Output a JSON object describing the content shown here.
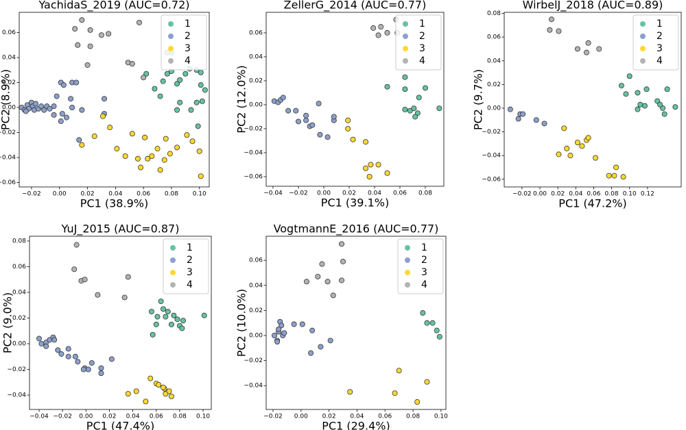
{
  "chart_data": [
    {
      "type": "scatter",
      "title": "YachidaS_2019 (AUC=0.72)",
      "xlabel": "PC1 (38.9%)",
      "ylabel": "PC2 (8.9%)",
      "xlim": [
        -0.0288,
        0.107
      ],
      "ylim": [
        -0.0636,
        0.0762
      ],
      "xticks": [
        {
          "value": -0.02,
          "label": "−0.02"
        },
        {
          "value": 0,
          "label": "0.00"
        },
        0.02,
        0.04,
        0.06,
        0.08,
        {
          "value": 0.1,
          "label": "0.10"
        }
      ],
      "yticks": [
        {
          "value": -0.06,
          "label": "−0.06"
        },
        {
          "value": -0.04,
          "label": "−0.04"
        },
        {
          "value": -0.02,
          "label": "−0.02"
        },
        {
          "value": 0,
          "label": "0.00"
        },
        0.02,
        0.04,
        0.06
      ],
      "legend": "upper right",
      "series": [
        {
          "name": "1",
          "color": "#66c2a5",
          "x": [
            0.062,
            0.068,
            0.072,
            0.077,
            0.08,
            0.08,
            0.084,
            0.086,
            0.09,
            0.093,
            0.098,
            0.101,
            0.104,
            0.102,
            0.098,
            0.099,
            0.094,
            0.086,
            0.084,
            0.074,
            0.101
          ],
          "values": [
            0.027,
            0.015,
            0.009,
            0.027,
            0.029,
            0.044,
            0.019,
            0.022,
            0.027,
            0.031,
            0.03,
            0.028,
            0.014,
            0.005,
            0.004,
            -0.015,
            -0.002,
            0.004,
            -0.002,
            0.021,
            0.018
          ]
        },
        {
          "name": "2",
          "color": "#8da0cb",
          "x": [
            -0.027,
            -0.025,
            -0.023,
            -0.022,
            -0.02,
            -0.019,
            -0.018,
            -0.017,
            -0.015,
            -0.013,
            -0.011,
            -0.009,
            -0.007,
            -0.004,
            -0.024,
            0.001,
            0.003,
            0.009,
            0.012,
            -0.002,
            0.008,
            0.009,
            0.002,
            0.005,
            0.001,
            0.016,
            0.014,
            0.032,
            0.032,
            -0.004
          ],
          "values": [
            0.0,
            -0.002,
            0.002,
            -0.001,
            0.004,
            0.001,
            -0.002,
            0.003,
            -0.001,
            0.001,
            -0.002,
            0.001,
            -0.001,
            0.001,
            -0.003,
            0.02,
            0.018,
            0.02,
            0.02,
            0.009,
            0.007,
            0.0,
            -0.005,
            -0.008,
            -0.011,
            -0.002,
            -0.026,
            0.007,
            -0.005,
            -0.006
          ]
        },
        {
          "name": "3",
          "color": "#ffd92f",
          "x": [
            0.016,
            0.025,
            0.031,
            0.036,
            0.041,
            0.047,
            0.052,
            0.056,
            0.058,
            0.061,
            0.066,
            0.07,
            0.072,
            0.075,
            0.076,
            0.079,
            0.084,
            0.091,
            0.095,
            0.1,
            0.101,
            0.063
          ],
          "values": [
            -0.03,
            -0.023,
            -0.007,
            -0.016,
            -0.033,
            -0.039,
            -0.021,
            -0.041,
            -0.048,
            -0.024,
            -0.039,
            -0.033,
            -0.05,
            -0.042,
            -0.025,
            -0.037,
            -0.032,
            -0.022,
            -0.027,
            -0.035,
            -0.055,
            -0.041
          ]
        },
        {
          "name": "4",
          "color": "#b3b3b3",
          "x": [
            0.011,
            0.016,
            0.022,
            0.03,
            0.035,
            0.013,
            0.02,
            0.049,
            0.052,
            0.057,
            0.06,
            0.077,
            0.022
          ],
          "values": [
            0.063,
            0.07,
            0.062,
            0.058,
            0.059,
            0.05,
            0.034,
            0.036,
            0.035,
            0.068,
            0.024,
            0.044,
            0.049
          ]
        }
      ]
    },
    {
      "type": "scatter",
      "title": "ZellerG_2014 (AUC=0.77)",
      "xlabel": "PC1 (39.1%)",
      "ylabel": "PC2 (12.0%)",
      "xlim": [
        -0.0454,
        0.0946
      ],
      "ylim": [
        -0.068,
        0.0771
      ],
      "xticks": [
        {
          "value": -0.04,
          "label": "−0.04"
        },
        {
          "value": -0.02,
          "label": "−0.02"
        },
        {
          "value": 0,
          "label": "0.00"
        },
        0.02,
        0.04,
        0.06,
        0.08
      ],
      "yticks": [
        {
          "value": -0.06,
          "label": "−0.06"
        },
        {
          "value": -0.04,
          "label": "−0.04"
        },
        {
          "value": -0.02,
          "label": "−0.02"
        },
        {
          "value": 0,
          "label": "0.00"
        },
        0.02,
        0.04,
        0.06
      ],
      "legend": "upper right",
      "series": [
        {
          "name": "1",
          "color": "#66c2a5",
          "x": [
            0.05,
            0.064,
            0.064,
            0.08,
            0.091,
            0.064,
            0.068,
            0.071,
            0.074,
            0.075,
            0.072
          ],
          "values": [
            0.015,
            0.023,
            0.013,
            0.014,
            -0.003,
            -0.004,
            -0.005,
            -0.003,
            -0.007,
            0.006,
            -0.01
          ]
        },
        {
          "name": "2",
          "color": "#8da0cb",
          "x": [
            -0.039,
            -0.036,
            -0.034,
            -0.032,
            -0.028,
            -0.022,
            -0.02,
            -0.014,
            -0.011,
            -0.003,
            0.003,
            0.008,
            0.008,
            -0.004,
            -0.009,
            -0.014
          ],
          "values": [
            0.003,
            0.002,
            0.004,
            0.006,
            -0.005,
            -0.005,
            -0.014,
            -0.013,
            -0.018,
            -0.025,
            -0.027,
            -0.013,
            -0.01,
            0.001,
            -0.017,
            -0.009
          ]
        },
        {
          "name": "3",
          "color": "#ffd92f",
          "x": [
            0.019,
            0.019,
            0.023,
            0.033,
            0.033,
            0.037,
            0.043,
            0.036,
            0.05
          ],
          "values": [
            -0.013,
            -0.02,
            -0.029,
            -0.031,
            -0.053,
            -0.05,
            -0.05,
            -0.06,
            -0.057
          ]
        },
        {
          "name": "4",
          "color": "#b3b3b3",
          "x": [
            0.039,
            0.045,
            0.043,
            0.05,
            0.057,
            0.058
          ],
          "values": [
            0.064,
            0.065,
            0.058,
            0.06,
            0.071,
            0.06
          ]
        }
      ]
    },
    {
      "type": "scatter",
      "title": "WirbelJ_2018 (AUC=0.89)",
      "xlabel": "PC1 (47.2%)",
      "ylabel": "PC2 (9.7%)",
      "xlim": [
        -0.0398,
        0.1576
      ],
      "ylim": [
        -0.0665,
        0.0809
      ],
      "xticks": [
        {
          "value": -0.02,
          "label": "−0.02"
        },
        {
          "value": 0,
          "label": "0.00"
        },
        0.02,
        0.04,
        0.06,
        0.08,
        {
          "value": 0.1,
          "label": "0.10"
        },
        0.12
      ],
      "yticks": [
        {
          "value": -0.06,
          "label": "−0.06"
        },
        {
          "value": -0.04,
          "label": "−0.04"
        },
        {
          "value": -0.02,
          "label": "−0.02"
        },
        {
          "value": 0,
          "label": "0.00"
        },
        0.02,
        0.04,
        0.06,
        0.08
      ],
      "legend": "upper right",
      "series": [
        {
          "name": "1",
          "color": "#66c2a5",
          "x": [
            0.091,
            0.1,
            0.096,
            0.109,
            0.119,
            0.117,
            0.112,
            0.109,
            0.131,
            0.137,
            0.139,
            0.142,
            0.151,
            0.134
          ],
          "values": [
            0.019,
            0.027,
            0.012,
            0.013,
            0.016,
            0.002,
            0.003,
            -0.001,
            0.006,
            0.0,
            -0.005,
            0.016,
            0.001,
            0.003
          ]
        },
        {
          "name": "2",
          "color": "#8da0cb",
          "x": [
            -0.033,
            -0.024,
            -0.022,
            -0.019,
            -0.004,
            0.005
          ],
          "values": [
            -0.001,
            -0.009,
            -0.005,
            -0.005,
            -0.01,
            -0.013
          ]
        },
        {
          "name": "3",
          "color": "#ffd92f",
          "x": [
            0.027,
            0.021,
            0.03,
            0.034,
            0.047,
            0.052,
            0.054,
            0.042,
            0.062,
            0.077,
            0.083,
            0.085,
            0.093
          ],
          "values": [
            -0.017,
            -0.039,
            -0.034,
            -0.04,
            -0.032,
            -0.027,
            -0.025,
            -0.029,
            -0.042,
            -0.057,
            -0.057,
            -0.05,
            -0.058
          ]
        },
        {
          "name": "4",
          "color": "#b3b3b3",
          "x": [
            0.011,
            0.013,
            0.021,
            0.042,
            0.052,
            0.054,
            0.066
          ],
          "values": [
            0.066,
            0.075,
            0.065,
            0.05,
            0.047,
            0.055,
            0.05
          ]
        }
      ]
    },
    {
      "type": "scatter",
      "title": "YuJ_2015 (AUC=0.87)",
      "xlabel": "PC1 (47.4%)",
      "ylabel": "PC2 (9.0%)",
      "xlim": [
        -0.0482,
        0.107
      ],
      "ylim": [
        -0.0512,
        0.0837
      ],
      "xticks": [
        {
          "value": -0.04,
          "label": "−0.04"
        },
        {
          "value": -0.02,
          "label": "−0.02"
        },
        {
          "value": 0,
          "label": "0.00"
        },
        0.02,
        0.04,
        0.06,
        0.08,
        {
          "value": 0.1,
          "label": "0.10"
        }
      ],
      "yticks": [
        {
          "value": -0.04,
          "label": "−0.04"
        },
        {
          "value": -0.02,
          "label": "−0.02"
        },
        {
          "value": 0,
          "label": "0.00"
        },
        0.02,
        0.04,
        0.06,
        0.08
      ],
      "legend": "upper right",
      "series": [
        {
          "name": "1",
          "color": "#66c2a5",
          "x": [
            0.056,
            0.064,
            0.057,
            0.061,
            0.068,
            0.07,
            0.073,
            0.075,
            0.078,
            0.08,
            0.083,
            0.082,
            0.101,
            0.066,
            0.06
          ],
          "values": [
            0.025,
            0.033,
            0.007,
            0.021,
            0.021,
            0.025,
            0.015,
            0.022,
            0.019,
            0.014,
            0.018,
            0.012,
            0.022,
            0.027,
            0.015
          ]
        },
        {
          "name": "2",
          "color": "#8da0cb",
          "x": [
            -0.04,
            -0.038,
            -0.034,
            -0.031,
            -0.028,
            -0.027,
            -0.024,
            -0.021,
            -0.015,
            -0.015,
            -0.009,
            -0.007,
            -0.001,
            0.002,
            0.005,
            0.013,
            0.013,
            0.022,
            -0.002,
            -0.034
          ],
          "values": [
            0.004,
            0.0,
            0.001,
            0.003,
            0.005,
            0.003,
            -0.005,
            -0.008,
            -0.01,
            -0.004,
            -0.01,
            -0.014,
            -0.019,
            -0.02,
            -0.015,
            -0.019,
            -0.023,
            -0.012,
            -0.02,
            -0.002
          ]
        },
        {
          "name": "3",
          "color": "#ffd92f",
          "x": [
            0.036,
            0.043,
            0.051,
            0.055,
            0.06,
            0.062,
            0.067,
            0.066,
            0.068,
            0.071,
            0.073
          ],
          "values": [
            -0.039,
            -0.037,
            -0.045,
            -0.027,
            -0.031,
            -0.032,
            -0.035,
            -0.034,
            -0.039,
            -0.037,
            -0.041
          ]
        },
        {
          "name": "4",
          "color": "#b3b3b3",
          "x": [
            -0.008,
            -0.01,
            -0.004,
            -0.001,
            0.01,
            0.033,
            0.036
          ],
          "values": [
            0.077,
            0.058,
            0.049,
            0.05,
            0.038,
            0.036,
            0.052
          ]
        }
      ]
    },
    {
      "type": "scatter",
      "title": "VogtmannE_2016 (AUC=0.77)",
      "xlabel": "PC1 (29.4%)",
      "ylabel": "PC2 (10.0%)",
      "xlim": [
        -0.0249,
        0.1035
      ],
      "ylim": [
        -0.059,
        0.0792
      ],
      "xticks": [
        {
          "value": -0.02,
          "label": "−0.02"
        },
        {
          "value": 0,
          "label": "0.00"
        },
        0.02,
        0.04,
        0.06,
        0.08,
        {
          "value": 0.1,
          "label": "0.10"
        }
      ],
      "yticks": [
        {
          "value": -0.04,
          "label": "−0.04"
        },
        {
          "value": -0.02,
          "label": "−0.02"
        },
        {
          "value": 0,
          "label": "0.00"
        },
        0.02,
        0.04,
        0.06
      ],
      "legend": "upper right",
      "series": [
        {
          "name": "1",
          "color": "#66c2a5",
          "x": [
            0.087,
            0.09,
            0.094,
            0.097,
            0.099
          ],
          "values": [
            0.018,
            0.01,
            0.01,
            0.004,
            -0.001
          ]
        },
        {
          "name": "2",
          "color": "#8da0cb",
          "x": [
            -0.019,
            -0.017,
            -0.016,
            -0.015,
            -0.014,
            -0.013,
            -0.016,
            -0.017,
            -0.012,
            -0.005,
            0.001,
            0.008,
            0.007,
            0.014,
            0.021
          ],
          "values": [
            0.0,
            -0.004,
            0.003,
            0.011,
            0.008,
            0.0,
            0.005,
            -0.005,
            0.002,
            0.009,
            0.009,
            0.004,
            -0.014,
            -0.009,
            -0.004
          ]
        },
        {
          "name": "3",
          "color": "#ffd92f",
          "x": [
            0.07,
            0.035,
            0.067,
            0.09,
            0.083
          ],
          "values": [
            -0.028,
            -0.045,
            -0.046,
            -0.037,
            -0.053
          ]
        },
        {
          "name": "4",
          "color": "#b3b3b3",
          "x": [
            0.029,
            0.03,
            0.015,
            0.012,
            0.004,
            0.019,
            0.029,
            0.023
          ],
          "values": [
            0.073,
            0.059,
            0.057,
            0.047,
            0.043,
            0.043,
            0.044,
            0.032
          ]
        }
      ]
    }
  ]
}
